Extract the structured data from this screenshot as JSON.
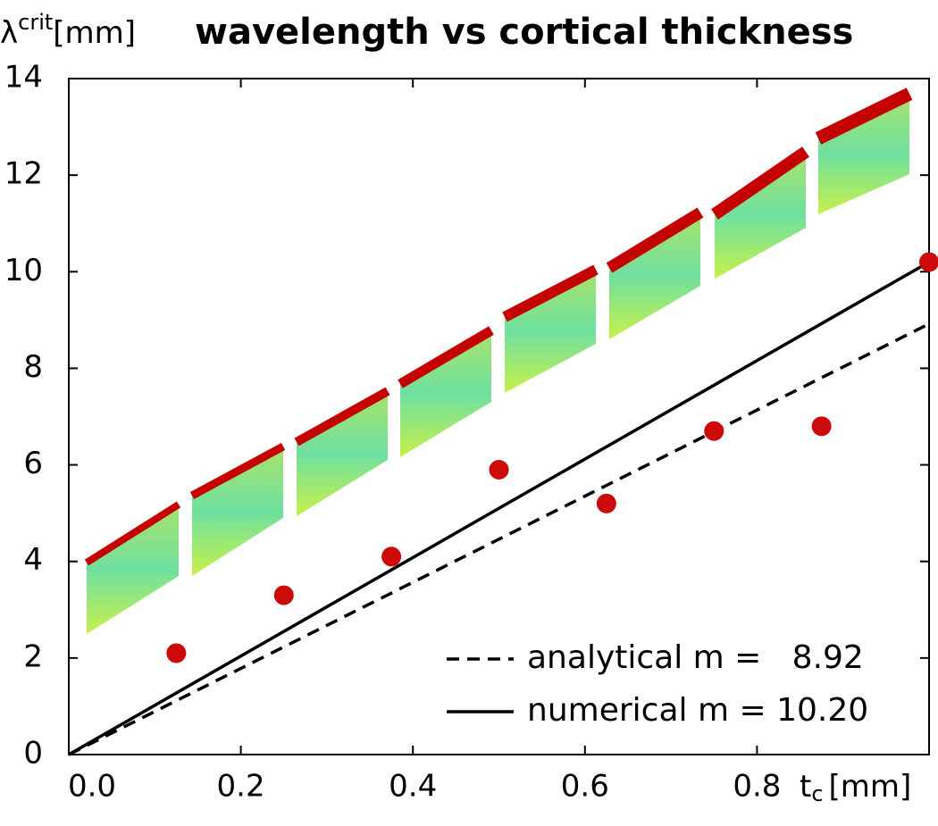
{
  "chart_data": {
    "type": "line",
    "title": "wavelength vs cortical thickness",
    "ylabel": {
      "symbol": "λ",
      "sup": "crit",
      "unit": "[mm]"
    },
    "xlabel": {
      "symbol": "t",
      "sub": "c",
      "unit": "[mm]"
    },
    "xlim": [
      0,
      1
    ],
    "ylim": [
      0,
      14
    ],
    "xticks": [
      {
        "value": 0,
        "label": "0.0"
      },
      0.2,
      0.4,
      0.6,
      0.8
    ],
    "yticks": [
      0,
      2,
      4,
      6,
      8,
      10,
      12,
      14
    ],
    "legend": "lower right",
    "series": [
      {
        "name": "analytical m =   8.92",
        "color": "#000000",
        "dash": true,
        "x": [
          0,
          1
        ],
        "values": [
          0,
          8.92
        ]
      },
      {
        "name": "numerical m = 10.20",
        "color": "#000000",
        "dash": false,
        "x": [
          0,
          1
        ],
        "values": [
          0,
          10.2
        ]
      },
      {
        "color": "#cc0a0a",
        "markers": true,
        "x": [
          0.125,
          0.25,
          0.375,
          0.5,
          0.625,
          0.75,
          0.875,
          1.0
        ],
        "values": [
          2.1,
          3.3,
          4.1,
          5.9,
          5.2,
          6.7,
          6.8,
          10.2
        ]
      }
    ]
  }
}
